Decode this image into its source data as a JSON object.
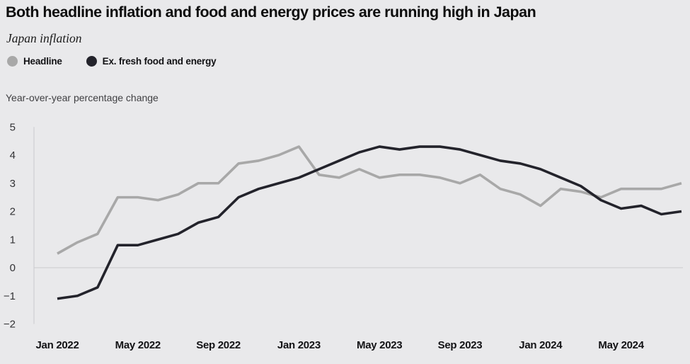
{
  "header": {
    "title": "Both headline inflation and food and energy prices are running high in Japan",
    "subtitle": "Japan inflation"
  },
  "legend": {
    "items": [
      {
        "label": "Headline",
        "color": "#a8a8a8"
      },
      {
        "label": "Ex. fresh food and energy",
        "color": "#23232b"
      }
    ]
  },
  "axis_note": "Year-over-year percentage change",
  "colors": {
    "background": "#e9e9eb",
    "headline_line": "#a8a8a8",
    "ex_fresh_food_energy_line": "#23232b",
    "axis_line": "#c9c9cc",
    "zero_line": "#cbcbce"
  },
  "chart_data": {
    "type": "line",
    "title": "Both headline inflation and food and energy prices are running high in Japan",
    "subtitle": "Japan inflation",
    "ylabel": "Year-over-year percentage change",
    "xlabel": "",
    "x": [
      "Jan 2022",
      "Feb 2022",
      "Mar 2022",
      "Apr 2022",
      "May 2022",
      "Jun 2022",
      "Jul 2022",
      "Aug 2022",
      "Sep 2022",
      "Oct 2022",
      "Nov 2022",
      "Dec 2022",
      "Jan 2023",
      "Feb 2023",
      "Mar 2023",
      "Apr 2023",
      "May 2023",
      "Jun 2023",
      "Jul 2023",
      "Aug 2023",
      "Sep 2023",
      "Oct 2023",
      "Nov 2023",
      "Dec 2023",
      "Jan 2024",
      "Feb 2024",
      "Mar 2024",
      "Apr 2024",
      "May 2024",
      "Jun 2024",
      "Jul 2024",
      "Aug 2024"
    ],
    "series": [
      {
        "name": "Headline",
        "color": "#a8a8a8",
        "values": [
          0.5,
          0.9,
          1.2,
          2.5,
          2.5,
          2.4,
          2.6,
          3.0,
          3.0,
          3.7,
          3.8,
          4.0,
          4.3,
          3.3,
          3.2,
          3.5,
          3.2,
          3.3,
          3.3,
          3.2,
          3.0,
          3.3,
          2.8,
          2.6,
          2.2,
          2.8,
          2.7,
          2.5,
          2.8,
          2.8,
          2.8,
          3.0
        ]
      },
      {
        "name": "Ex. fresh food and energy",
        "color": "#23232b",
        "values": [
          -1.1,
          -1.0,
          -0.7,
          0.8,
          0.8,
          1.0,
          1.2,
          1.6,
          1.8,
          2.5,
          2.8,
          3.0,
          3.2,
          3.5,
          3.8,
          4.1,
          4.3,
          4.2,
          4.3,
          4.3,
          4.2,
          4.0,
          3.8,
          3.7,
          3.5,
          3.2,
          2.9,
          2.4,
          2.1,
          2.2,
          1.9,
          2.0
        ]
      }
    ],
    "ylim": [
      -2,
      5
    ],
    "yticks": [
      5,
      4,
      3,
      2,
      1,
      0,
      -1,
      -2
    ],
    "xtick_labels": [
      "Jan 2022",
      "May 2022",
      "Sep 2022",
      "Jan 2023",
      "May 2023",
      "Sep 2023",
      "Jan 2024",
      "May 2024"
    ],
    "xtick_month_indices": [
      0,
      4,
      8,
      12,
      16,
      20,
      24,
      28
    ],
    "legend_position": "top-left",
    "grid": "zero-line-only"
  }
}
